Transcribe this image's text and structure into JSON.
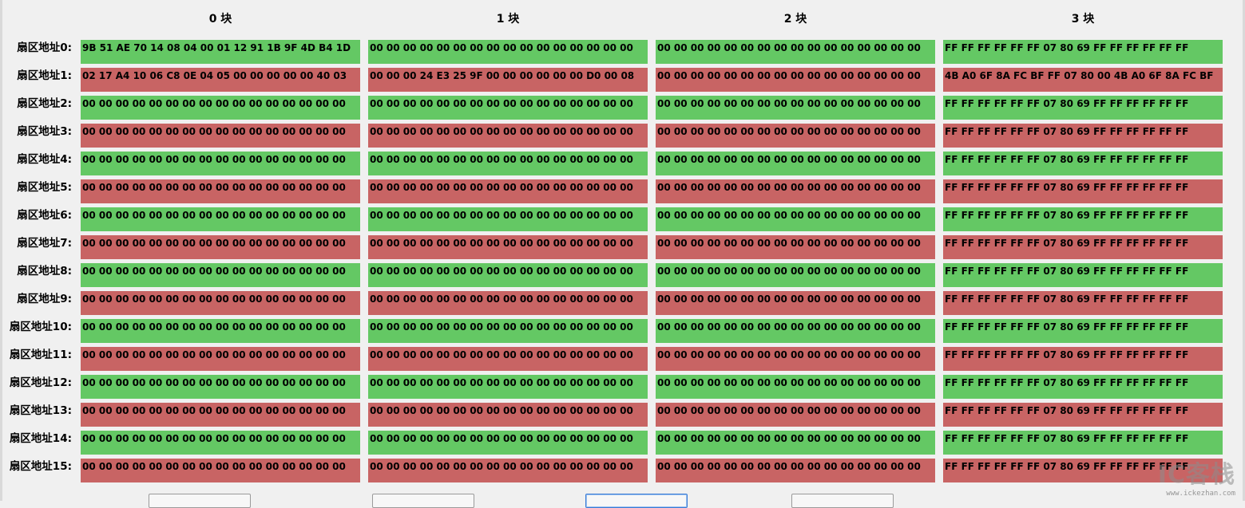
{
  "columns": [
    "0 块",
    "1 块",
    "2 块",
    "3 块"
  ],
  "rows": [
    {
      "label": "扇区地址0:",
      "blocks": [
        "9B 51 AE 70 14 08 04 00 01 12 91 1B 9F 4D B4 1D",
        "00 00 00 00 00 00 00 00 00 00 00 00 00 00 00 00",
        "00 00 00 00 00 00 00 00 00 00 00 00 00 00 00 00",
        "FF FF FF FF FF FF 07 80 69 FF FF FF FF FF FF"
      ]
    },
    {
      "label": "扇区地址1:",
      "blocks": [
        "02 17 A4 10 06 C8 0E 04 05 00 00 00 00 00 40 03",
        "00 00 00 24 E3 25 9F 00 00 00 00 00 00 D0 00 08",
        "00 00 00 00 00 00 00 00 00 00 00 00 00 00 00 00",
        "4B A0 6F 8A FC BF FF 07 80 00 4B A0 6F 8A FC BF"
      ]
    },
    {
      "label": "扇区地址2:",
      "blocks": [
        "00 00 00 00 00 00 00 00 00 00 00 00 00 00 00 00",
        "00 00 00 00 00 00 00 00 00 00 00 00 00 00 00 00",
        "00 00 00 00 00 00 00 00 00 00 00 00 00 00 00 00",
        "FF FF FF FF FF FF 07 80 69 FF FF FF FF FF FF"
      ]
    },
    {
      "label": "扇区地址3:",
      "blocks": [
        "00 00 00 00 00 00 00 00 00 00 00 00 00 00 00 00",
        "00 00 00 00 00 00 00 00 00 00 00 00 00 00 00 00",
        "00 00 00 00 00 00 00 00 00 00 00 00 00 00 00 00",
        "FF FF FF FF FF FF 07 80 69 FF FF FF FF FF FF"
      ]
    },
    {
      "label": "扇区地址4:",
      "blocks": [
        "00 00 00 00 00 00 00 00 00 00 00 00 00 00 00 00",
        "00 00 00 00 00 00 00 00 00 00 00 00 00 00 00 00",
        "00 00 00 00 00 00 00 00 00 00 00 00 00 00 00 00",
        "FF FF FF FF FF FF 07 80 69 FF FF FF FF FF FF"
      ]
    },
    {
      "label": "扇区地址5:",
      "blocks": [
        "00 00 00 00 00 00 00 00 00 00 00 00 00 00 00 00",
        "00 00 00 00 00 00 00 00 00 00 00 00 00 00 00 00",
        "00 00 00 00 00 00 00 00 00 00 00 00 00 00 00 00",
        "FF FF FF FF FF FF 07 80 69 FF FF FF FF FF FF"
      ]
    },
    {
      "label": "扇区地址6:",
      "blocks": [
        "00 00 00 00 00 00 00 00 00 00 00 00 00 00 00 00",
        "00 00 00 00 00 00 00 00 00 00 00 00 00 00 00 00",
        "00 00 00 00 00 00 00 00 00 00 00 00 00 00 00 00",
        "FF FF FF FF FF FF 07 80 69 FF FF FF FF FF FF"
      ]
    },
    {
      "label": "扇区地址7:",
      "blocks": [
        "00 00 00 00 00 00 00 00 00 00 00 00 00 00 00 00",
        "00 00 00 00 00 00 00 00 00 00 00 00 00 00 00 00",
        "00 00 00 00 00 00 00 00 00 00 00 00 00 00 00 00",
        "FF FF FF FF FF FF 07 80 69 FF FF FF FF FF FF"
      ]
    },
    {
      "label": "扇区地址8:",
      "blocks": [
        "00 00 00 00 00 00 00 00 00 00 00 00 00 00 00 00",
        "00 00 00 00 00 00 00 00 00 00 00 00 00 00 00 00",
        "00 00 00 00 00 00 00 00 00 00 00 00 00 00 00 00",
        "FF FF FF FF FF FF 07 80 69 FF FF FF FF FF FF"
      ]
    },
    {
      "label": "扇区地址9:",
      "blocks": [
        "00 00 00 00 00 00 00 00 00 00 00 00 00 00 00 00",
        "00 00 00 00 00 00 00 00 00 00 00 00 00 00 00 00",
        "00 00 00 00 00 00 00 00 00 00 00 00 00 00 00 00",
        "FF FF FF FF FF FF 07 80 69 FF FF FF FF FF FF"
      ]
    },
    {
      "label": "扇区地址10:",
      "blocks": [
        "00 00 00 00 00 00 00 00 00 00 00 00 00 00 00 00",
        "00 00 00 00 00 00 00 00 00 00 00 00 00 00 00 00",
        "00 00 00 00 00 00 00 00 00 00 00 00 00 00 00 00",
        "FF FF FF FF FF FF 07 80 69 FF FF FF FF FF FF"
      ]
    },
    {
      "label": "扇区地址11:",
      "blocks": [
        "00 00 00 00 00 00 00 00 00 00 00 00 00 00 00 00",
        "00 00 00 00 00 00 00 00 00 00 00 00 00 00 00 00",
        "00 00 00 00 00 00 00 00 00 00 00 00 00 00 00 00",
        "FF FF FF FF FF FF 07 80 69 FF FF FF FF FF FF"
      ]
    },
    {
      "label": "扇区地址12:",
      "blocks": [
        "00 00 00 00 00 00 00 00 00 00 00 00 00 00 00 00",
        "00 00 00 00 00 00 00 00 00 00 00 00 00 00 00 00",
        "00 00 00 00 00 00 00 00 00 00 00 00 00 00 00 00",
        "FF FF FF FF FF FF 07 80 69 FF FF FF FF FF FF"
      ]
    },
    {
      "label": "扇区地址13:",
      "blocks": [
        "00 00 00 00 00 00 00 00 00 00 00 00 00 00 00 00",
        "00 00 00 00 00 00 00 00 00 00 00 00 00 00 00 00",
        "00 00 00 00 00 00 00 00 00 00 00 00 00 00 00 00",
        "FF FF FF FF FF FF 07 80 69 FF FF FF FF FF FF"
      ]
    },
    {
      "label": "扇区地址14:",
      "blocks": [
        "00 00 00 00 00 00 00 00 00 00 00 00 00 00 00 00",
        "00 00 00 00 00 00 00 00 00 00 00 00 00 00 00 00",
        "00 00 00 00 00 00 00 00 00 00 00 00 00 00 00 00",
        "FF FF FF FF FF FF 07 80 69 FF FF FF FF FF FF"
      ]
    },
    {
      "label": "扇区地址15:",
      "blocks": [
        "00 00 00 00 00 00 00 00 00 00 00 00 00 00 00 00",
        "00 00 00 00 00 00 00 00 00 00 00 00 00 00 00 00",
        "00 00 00 00 00 00 00 00 00 00 00 00 00 00 00 00",
        "FF FF FF FF FF FF 07 80 69 FF FF FF FF FF FF"
      ]
    }
  ],
  "colors": {
    "even_row": "#64c864",
    "odd_row": "#c86464",
    "window_bg": "#f0f0f0",
    "focus_border": "#3a7bd5"
  },
  "buttons": [
    {
      "label": "",
      "focused": false
    },
    {
      "label": "",
      "focused": false
    },
    {
      "label": "",
      "focused": true
    },
    {
      "label": "",
      "focused": false
    }
  ],
  "watermark": {
    "logo": "IC客栈",
    "url": "www.ickezhan.com"
  }
}
